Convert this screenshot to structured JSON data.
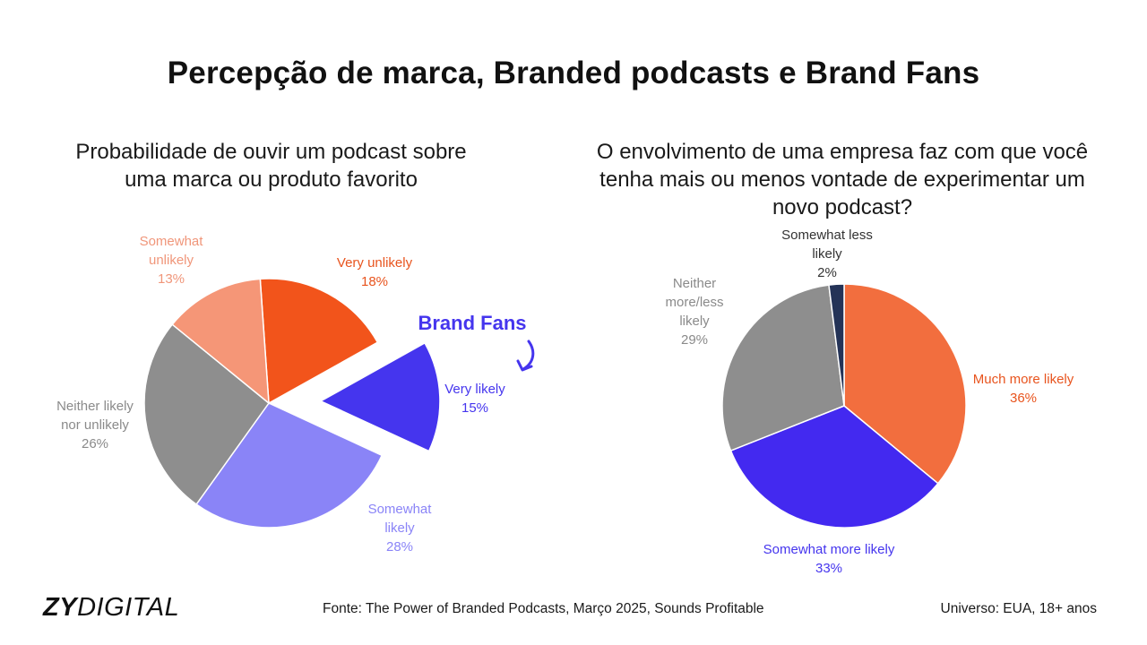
{
  "header": {
    "title": "Percepção de marca, Branded podcasts e Brand Fans"
  },
  "chart_data": [
    {
      "type": "pie",
      "title": "Probabilidade de ouvir um podcast sobre uma marca ou produto favorito",
      "annotation": "Brand Fans",
      "exploded_slice": "Very likely",
      "slices": [
        {
          "label": "Very unlikely",
          "label_lines": [
            "Very unlikely"
          ],
          "value": 18,
          "value_label": "18%",
          "color": "#f2541b",
          "label_color": "#e8541e"
        },
        {
          "label": "Very likely",
          "label_lines": [
            "Very likely"
          ],
          "value": 15,
          "value_label": "15%",
          "color": "#4535ee",
          "label_color": "#4535ee"
        },
        {
          "label": "Somewhat likely",
          "label_lines": [
            "Somewhat",
            "likely"
          ],
          "value": 28,
          "value_label": "28%",
          "color": "#8a84f7",
          "label_color": "#8a84f7"
        },
        {
          "label": "Neither likely nor unlikely",
          "label_lines": [
            "Neither likely",
            "nor unlikely"
          ],
          "value": 26,
          "value_label": "26%",
          "color": "#8e8e8e",
          "label_color": "#8a8a8a"
        },
        {
          "label": "Somewhat unlikely",
          "label_lines": [
            "Somewhat",
            "unlikely"
          ],
          "value": 13,
          "value_label": "13%",
          "color": "#f59677",
          "label_color": "#f0967a"
        }
      ]
    },
    {
      "type": "pie",
      "title": "O envolvimento de uma empresa faz com que você tenha mais ou menos vontade de experimentar um novo podcast?",
      "slices": [
        {
          "label": "Much more likely",
          "label_lines": [
            "Much more likely"
          ],
          "value": 36,
          "value_label": "36%",
          "color": "#f26e3e",
          "label_color": "#e8541e"
        },
        {
          "label": "Somewhat more likely",
          "label_lines": [
            "Somewhat more likely"
          ],
          "value": 33,
          "value_label": "33%",
          "color": "#4329f0",
          "label_color": "#4535ee"
        },
        {
          "label": "Neither more/less likely",
          "label_lines": [
            "Neither",
            "more/less",
            "likely"
          ],
          "value": 29,
          "value_label": "29%",
          "color": "#8e8e8e",
          "label_color": "#8a8a8a"
        },
        {
          "label": "Somewhat less likely",
          "label_lines": [
            "Somewhat less",
            "likely"
          ],
          "value": 2,
          "value_label": "2%",
          "color": "#243357",
          "label_color": "#333333"
        }
      ]
    }
  ],
  "footer": {
    "logo_bold": "ZY",
    "logo_light": "DIGITAL",
    "source": "Fonte: The Power of Branded Podcasts, Março 2025, Sounds Profitable",
    "universe": "Universo: EUA, 18+ anos"
  }
}
